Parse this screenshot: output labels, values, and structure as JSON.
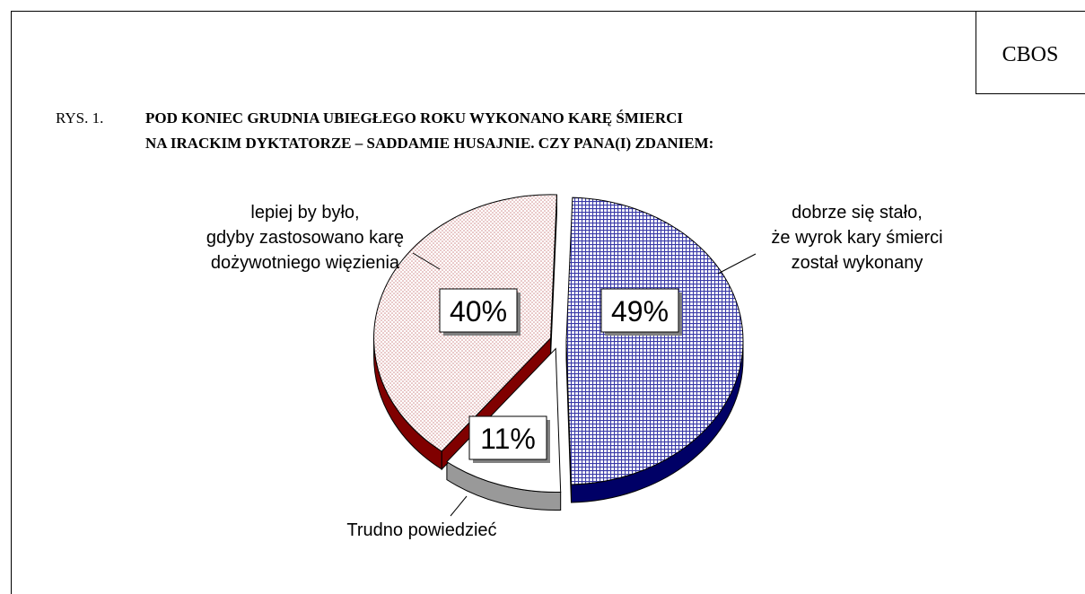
{
  "header": {
    "brand": "CBOS"
  },
  "chart_data": {
    "type": "pie",
    "figure_number": "RYS. 1.",
    "title_lines": [
      "POD KONIEC GRUDNIA UBIEGŁEGO ROKU WYKONANO KARĘ ŚMIERCI",
      "NA IRACKIM DYKTATORZE – SADDAMIE HUSAJNIE. CZY PANA(I) ZDANIEM:"
    ],
    "categories": [
      "dobrze się stało,\nże wyrok kary śmierci\nzostał wykonany",
      "Trudno powiedzieć",
      "lepiej by było,\ngdyby zastosowano karę\ndożywotniego więzienia"
    ],
    "values": [
      49,
      11,
      40
    ],
    "value_labels": [
      "49%",
      "11%",
      "40%"
    ],
    "colors": [
      "#000066",
      "#999999",
      "#800000"
    ]
  }
}
